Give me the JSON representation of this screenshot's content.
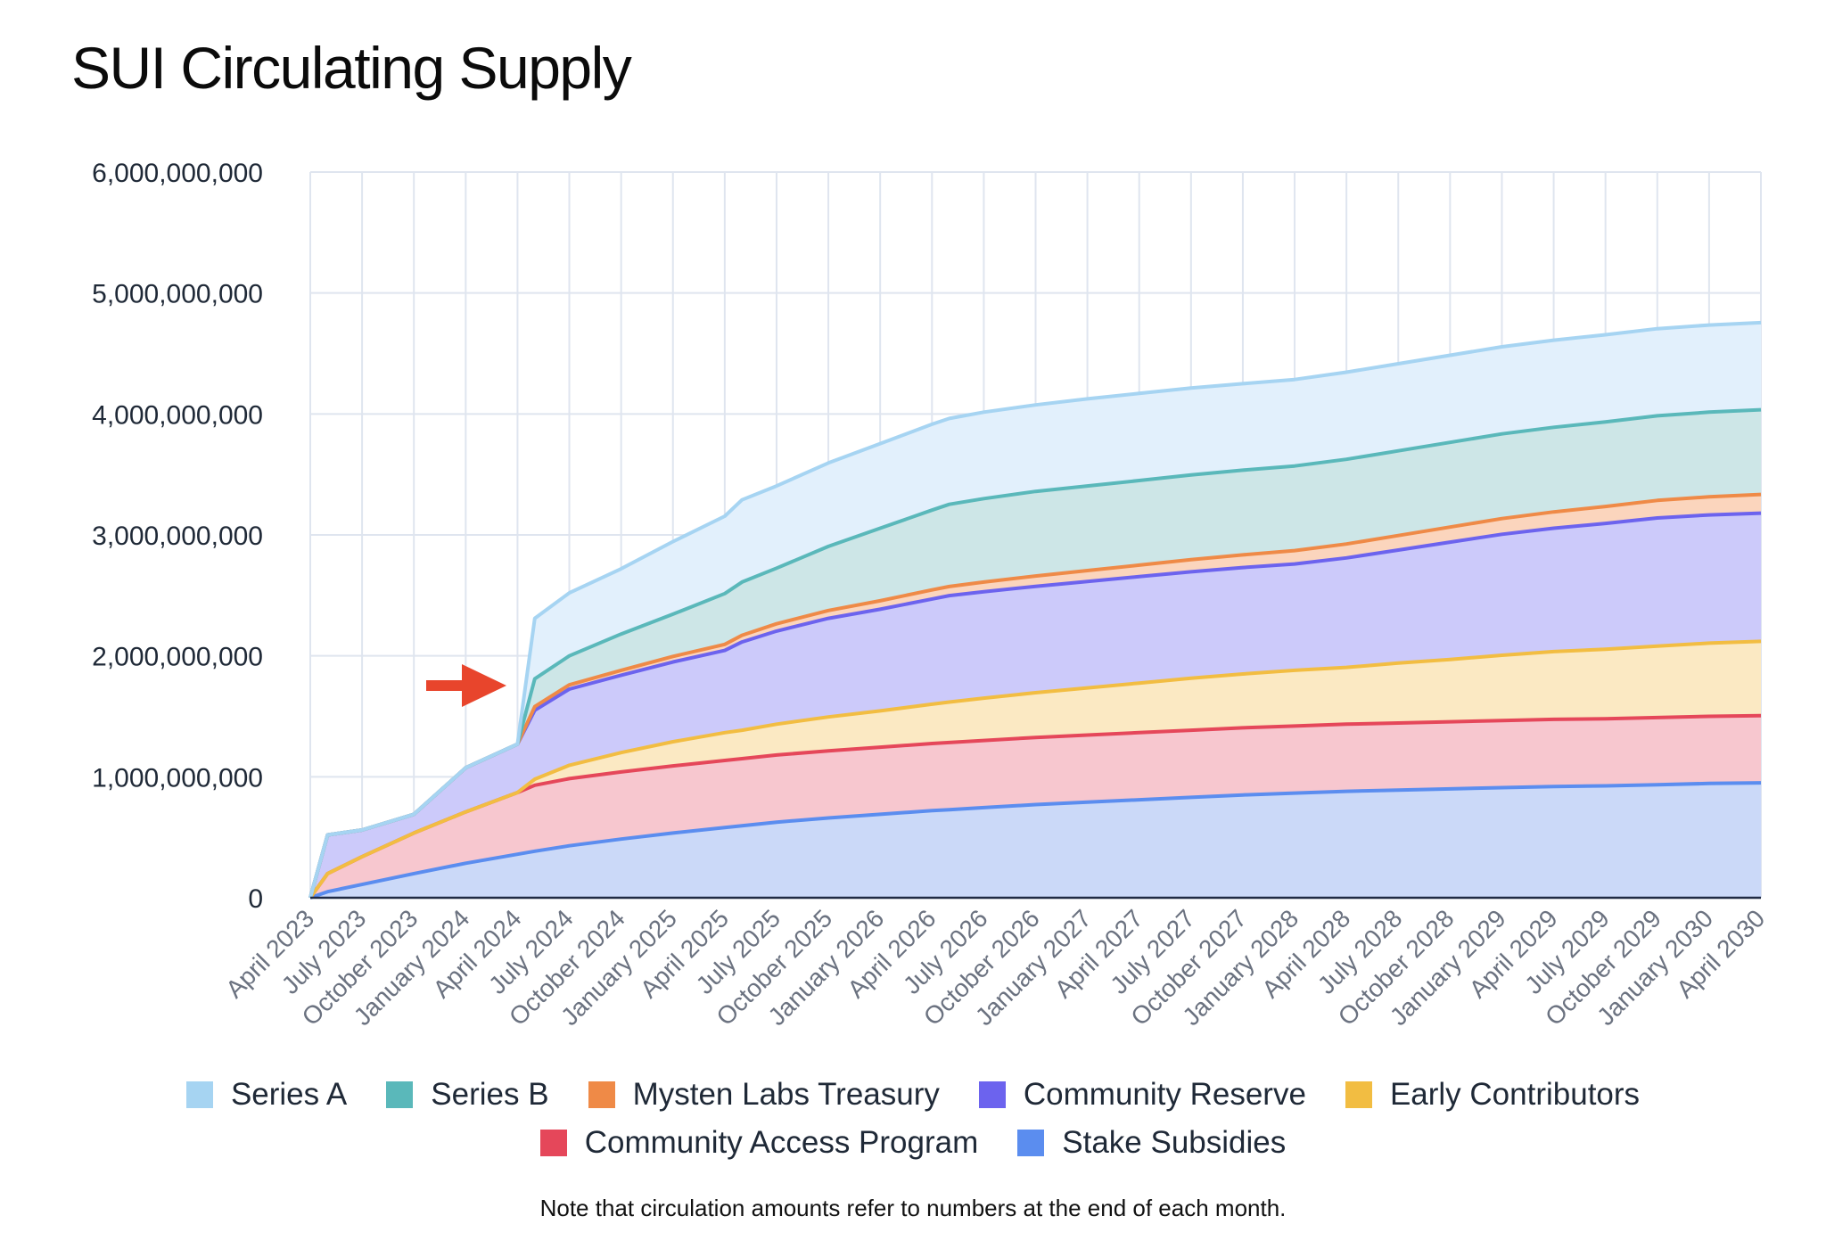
{
  "page": {
    "title": "SUI Circulating Supply",
    "note": "Note that circulation amounts refer to numbers at the end of each month."
  },
  "chart_data": {
    "type": "area",
    "stacked": true,
    "title": "SUI Circulating Supply",
    "xlabel": "",
    "ylabel": "",
    "ylim": [
      0,
      6000000000
    ],
    "grid": true,
    "legend_position": "bottom",
    "y_ticks": [
      "0",
      "1,000,000,000",
      "2,000,000,000",
      "3,000,000,000",
      "4,000,000,000",
      "5,000,000,000",
      "6,000,000,000"
    ],
    "x_ticks": [
      "April 2023",
      "July 2023",
      "October 2023",
      "January 2024",
      "April 2024",
      "July 2024",
      "October 2024",
      "January 2025",
      "April 2025",
      "July 2025",
      "October 2025",
      "January 2026",
      "April 2026",
      "July 2026",
      "October 2026",
      "January 2027",
      "April 2027",
      "July 2027",
      "October 2027",
      "January 2028",
      "April 2028",
      "July 2028",
      "October 2028",
      "January 2029",
      "April 2029",
      "July 2029",
      "October 2029",
      "January 2030",
      "April 2030"
    ],
    "x": [
      "2023-04",
      "2023-05",
      "2023-07",
      "2023-10",
      "2024-01",
      "2024-04",
      "2024-05",
      "2024-07",
      "2024-10",
      "2025-01",
      "2025-04",
      "2025-05",
      "2025-07",
      "2025-10",
      "2026-01",
      "2026-04",
      "2026-05",
      "2026-07",
      "2026-10",
      "2027-01",
      "2027-04",
      "2027-07",
      "2027-10",
      "2028-01",
      "2028-04",
      "2028-07",
      "2028-10",
      "2029-01",
      "2029-04",
      "2029-07",
      "2029-10",
      "2030-01",
      "2030-04"
    ],
    "series": [
      {
        "name": "Stake Subsidies",
        "color": "#5b8def",
        "fill": "#cbd9f8",
        "values": [
          0,
          50000000,
          110000000,
          200000000,
          285000000,
          360000000,
          385000000,
          430000000,
          485000000,
          535000000,
          580000000,
          595000000,
          625000000,
          660000000,
          690000000,
          720000000,
          728000000,
          745000000,
          770000000,
          790000000,
          810000000,
          830000000,
          850000000,
          865000000,
          880000000,
          890000000,
          900000000,
          910000000,
          920000000,
          925000000,
          935000000,
          945000000,
          950000000
        ]
      },
      {
        "name": "Community Access Program",
        "color": "#e5475a",
        "fill": "#f7c7cf",
        "values": [
          0,
          150000000,
          230000000,
          335000000,
          425000000,
          510000000,
          545000000,
          555000000,
          555000000,
          555000000,
          555000000,
          555000000,
          555000000,
          555000000,
          555000000,
          555000000,
          555000000,
          555000000,
          555000000,
          555000000,
          555000000,
          555000000,
          555000000,
          555000000,
          555000000,
          555000000,
          555000000,
          555000000,
          555000000,
          555000000,
          555000000,
          555000000,
          555000000
        ]
      },
      {
        "name": "Early Contributors",
        "color": "#f2bd42",
        "fill": "#fbe9c3",
        "values": [
          0,
          0,
          0,
          0,
          0,
          0,
          50000000,
          110000000,
          160000000,
          200000000,
          230000000,
          235000000,
          255000000,
          280000000,
          300000000,
          325000000,
          335000000,
          350000000,
          370000000,
          390000000,
          410000000,
          430000000,
          445000000,
          460000000,
          470000000,
          495000000,
          515000000,
          540000000,
          560000000,
          575000000,
          590000000,
          605000000,
          615000000
        ]
      },
      {
        "name": "Community Reserve",
        "color": "#6c63ee",
        "fill": "#cccafa",
        "values": [
          0,
          320000000,
          220000000,
          155000000,
          365000000,
          400000000,
          570000000,
          630000000,
          640000000,
          660000000,
          680000000,
          730000000,
          770000000,
          815000000,
          840000000,
          870000000,
          880000000,
          880000000,
          880000000,
          880000000,
          880000000,
          880000000,
          880000000,
          880000000,
          905000000,
          935000000,
          970000000,
          1000000000,
          1020000000,
          1040000000,
          1060000000,
          1060000000,
          1060000000
        ]
      },
      {
        "name": "Mysten Labs Treasury",
        "color": "#ef8a47",
        "fill": "#fbd5bd",
        "values": [
          0,
          0,
          0,
          0,
          0,
          0,
          30000000,
          35000000,
          40000000,
          45000000,
          50000000,
          55000000,
          60000000,
          65000000,
          70000000,
          75000000,
          75000000,
          80000000,
          85000000,
          90000000,
          95000000,
          100000000,
          105000000,
          110000000,
          115000000,
          120000000,
          125000000,
          130000000,
          135000000,
          140000000,
          145000000,
          150000000,
          155000000
        ]
      },
      {
        "name": "Series B",
        "color": "#5ab8ba",
        "fill": "#cde6e7",
        "values": [
          0,
          0,
          0,
          0,
          0,
          0,
          230000000,
          240000000,
          300000000,
          350000000,
          420000000,
          440000000,
          460000000,
          530000000,
          600000000,
          660000000,
          680000000,
          690000000,
          700000000,
          700000000,
          700000000,
          700000000,
          700000000,
          700000000,
          700000000,
          700000000,
          700000000,
          700000000,
          700000000,
          700000000,
          700000000,
          700000000,
          700000000
        ]
      },
      {
        "name": "Series A",
        "color": "#a6d4f2",
        "fill": "#e2f0fc",
        "values": [
          0,
          0,
          0,
          0,
          0,
          0,
          500000000,
          520000000,
          540000000,
          600000000,
          640000000,
          680000000,
          680000000,
          690000000,
          700000000,
          710000000,
          710000000,
          715000000,
          715000000,
          720000000,
          720000000,
          720000000,
          715000000,
          715000000,
          720000000,
          720000000,
          720000000,
          720000000,
          720000000,
          720000000,
          720000000,
          720000000,
          720000000
        ]
      }
    ],
    "annotations": [
      {
        "type": "arrow",
        "color": "#e8452c",
        "points_to": "2024-05"
      }
    ],
    "legend": [
      [
        "Series A",
        "Series B",
        "Mysten Labs Treasury",
        "Community Reserve",
        "Early Contributors"
      ],
      [
        "Community Access Program",
        "Stake Subsidies"
      ]
    ]
  }
}
